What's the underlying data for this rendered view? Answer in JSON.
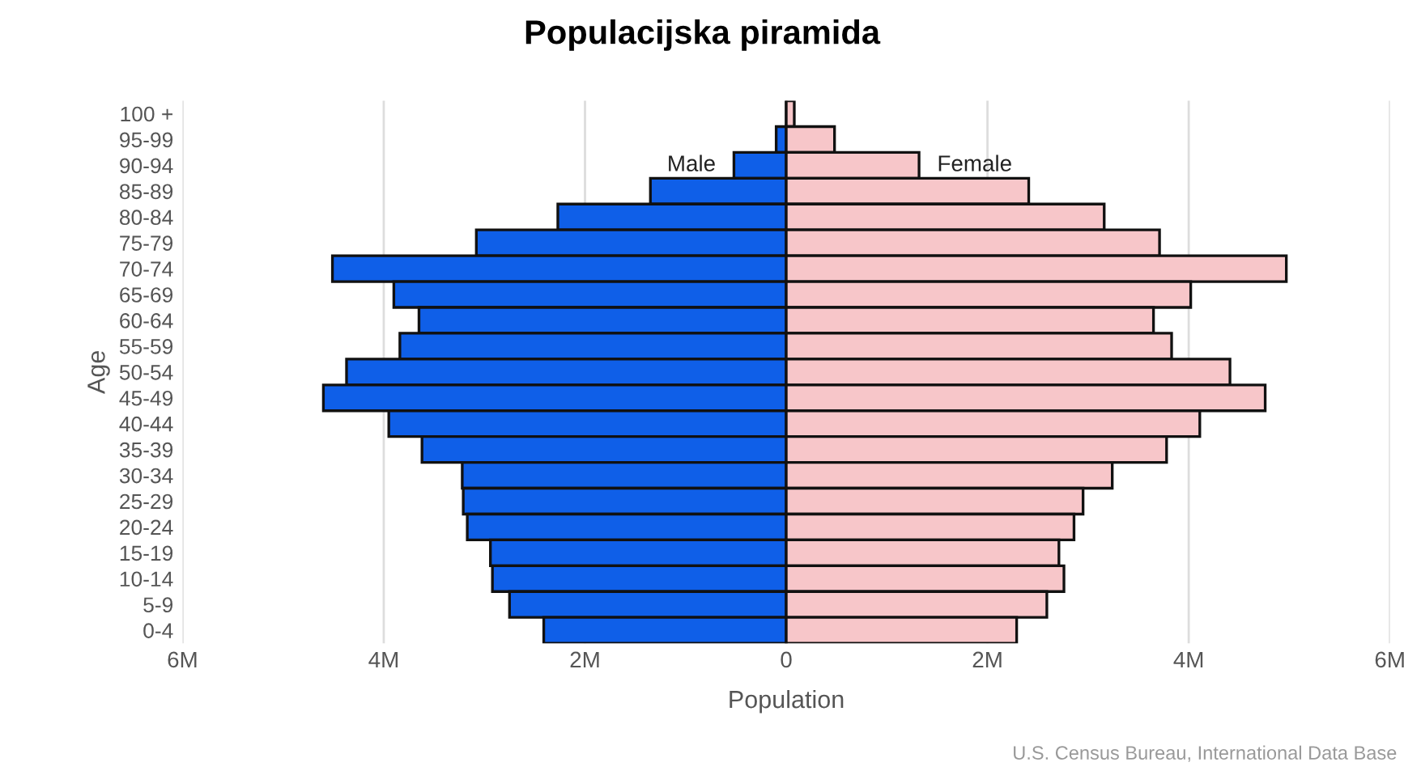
{
  "chart_data": {
    "type": "bar",
    "orientation": "horizontal",
    "title": "Populacijska piramida",
    "xlabel": "Population",
    "ylabel": "Age",
    "categories": [
      "100 +",
      "95-99",
      "90-94",
      "85-89",
      "80-84",
      "75-79",
      "70-74",
      "65-69",
      "60-64",
      "55-59",
      "50-54",
      "45-49",
      "40-44",
      "35-39",
      "30-34",
      "25-29",
      "20-24",
      "15-19",
      "10-14",
      "5-9",
      "0-4"
    ],
    "series": [
      {
        "name": "Male",
        "color": "#0f5fe8",
        "values": [
          null,
          -100000,
          -520000,
          -1350000,
          -2270000,
          -3080000,
          -4510000,
          -3900000,
          -3650000,
          -3840000,
          -4370000,
          -4600000,
          -3950000,
          -3620000,
          -3220000,
          -3210000,
          -3170000,
          -2940000,
          -2920000,
          -2750000,
          -2410000
        ]
      },
      {
        "name": "Female",
        "color": "#f7c6c9",
        "values": [
          80000,
          480000,
          1320000,
          2410000,
          3160000,
          3710000,
          4970000,
          4020000,
          3650000,
          3830000,
          4410000,
          4760000,
          4110000,
          3780000,
          3240000,
          2950000,
          2860000,
          2710000,
          2760000,
          2590000,
          2290000
        ]
      }
    ],
    "xlim": [
      -6000000,
      6000000
    ],
    "xticks": [
      {
        "value": -6000000,
        "label": "6M"
      },
      {
        "value": -4000000,
        "label": "4M"
      },
      {
        "value": -2000000,
        "label": "2M"
      },
      0,
      {
        "value": 2000000,
        "label": "2M"
      },
      {
        "value": 4000000,
        "label": "4M"
      },
      {
        "value": 6000000,
        "label": "6M"
      }
    ],
    "grid": "x",
    "legend": false,
    "stacked": true,
    "annotations": [
      "U.S. Census Bureau, International Data Base"
    ]
  }
}
